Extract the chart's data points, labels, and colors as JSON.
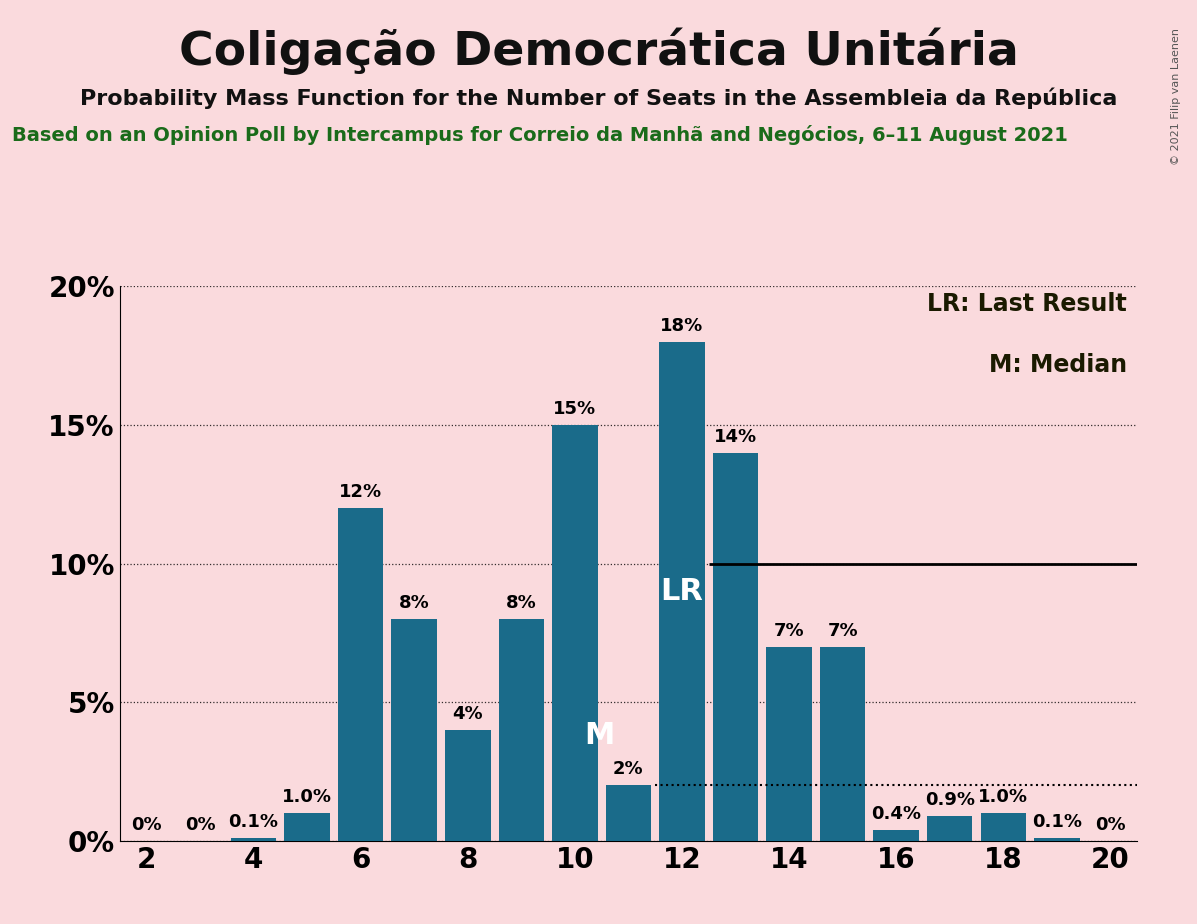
{
  "title": "Coligação Democrática Unitária",
  "subtitle": "Probability Mass Function for the Number of Seats in the Assembleia da República",
  "source_line": "Based on an Opinion Poll by Intercampus for Correio da Manhã and Negócios, 6–11 August 2021",
  "copyright": "© 2021 Filip van Laenen",
  "background_color": "#fadadd",
  "bar_color": "#1a6b8a",
  "seats": [
    2,
    3,
    4,
    5,
    6,
    7,
    8,
    9,
    10,
    11,
    12,
    13,
    14,
    15,
    16,
    17,
    18,
    19,
    20
  ],
  "probabilities": [
    0.0,
    0.0,
    0.1,
    0.0,
    12.0,
    8.0,
    4.0,
    8.0,
    15.0,
    2.0,
    18.0,
    14.0,
    7.0,
    7.0,
    0.4,
    0.9,
    1.0,
    0.1,
    0.0
  ],
  "labels": [
    "0%",
    "0%",
    "0.1%",
    "0%",
    "12%",
    "8%",
    "4%",
    "8%",
    "15%",
    "2%",
    "18%",
    "14%",
    "7%",
    "7%",
    "0.4%",
    "0.9%",
    "1.0%",
    "0.1%",
    "0%"
  ],
  "show_label": [
    true,
    false,
    true,
    false,
    true,
    true,
    true,
    true,
    true,
    true,
    true,
    true,
    true,
    true,
    true,
    true,
    true,
    true,
    true
  ],
  "extra_seat": 5,
  "extra_prob": 1.0,
  "extra_label": "1.0%",
  "LR_seat": 12,
  "LR_y": 10.0,
  "Median_seat": 11,
  "Median_y": 2.0,
  "ylim": [
    0,
    20
  ],
  "yticks": [
    0,
    5,
    10,
    15,
    20
  ],
  "ytick_labels": [
    "0%",
    "5%",
    "10%",
    "15%",
    "20%"
  ],
  "xticks": [
    2,
    4,
    6,
    8,
    10,
    12,
    14,
    16,
    18,
    20
  ],
  "legend_LR": "LR: Last Result",
  "legend_M": "M: Median",
  "LR_label": "LR",
  "M_label": "M",
  "title_fontsize": 34,
  "subtitle_fontsize": 16,
  "source_fontsize": 14,
  "axis_tick_fontsize": 20,
  "bar_label_fontsize": 13,
  "legend_fontsize": 17,
  "LR_M_fontsize": 22,
  "copyright_fontsize": 8
}
